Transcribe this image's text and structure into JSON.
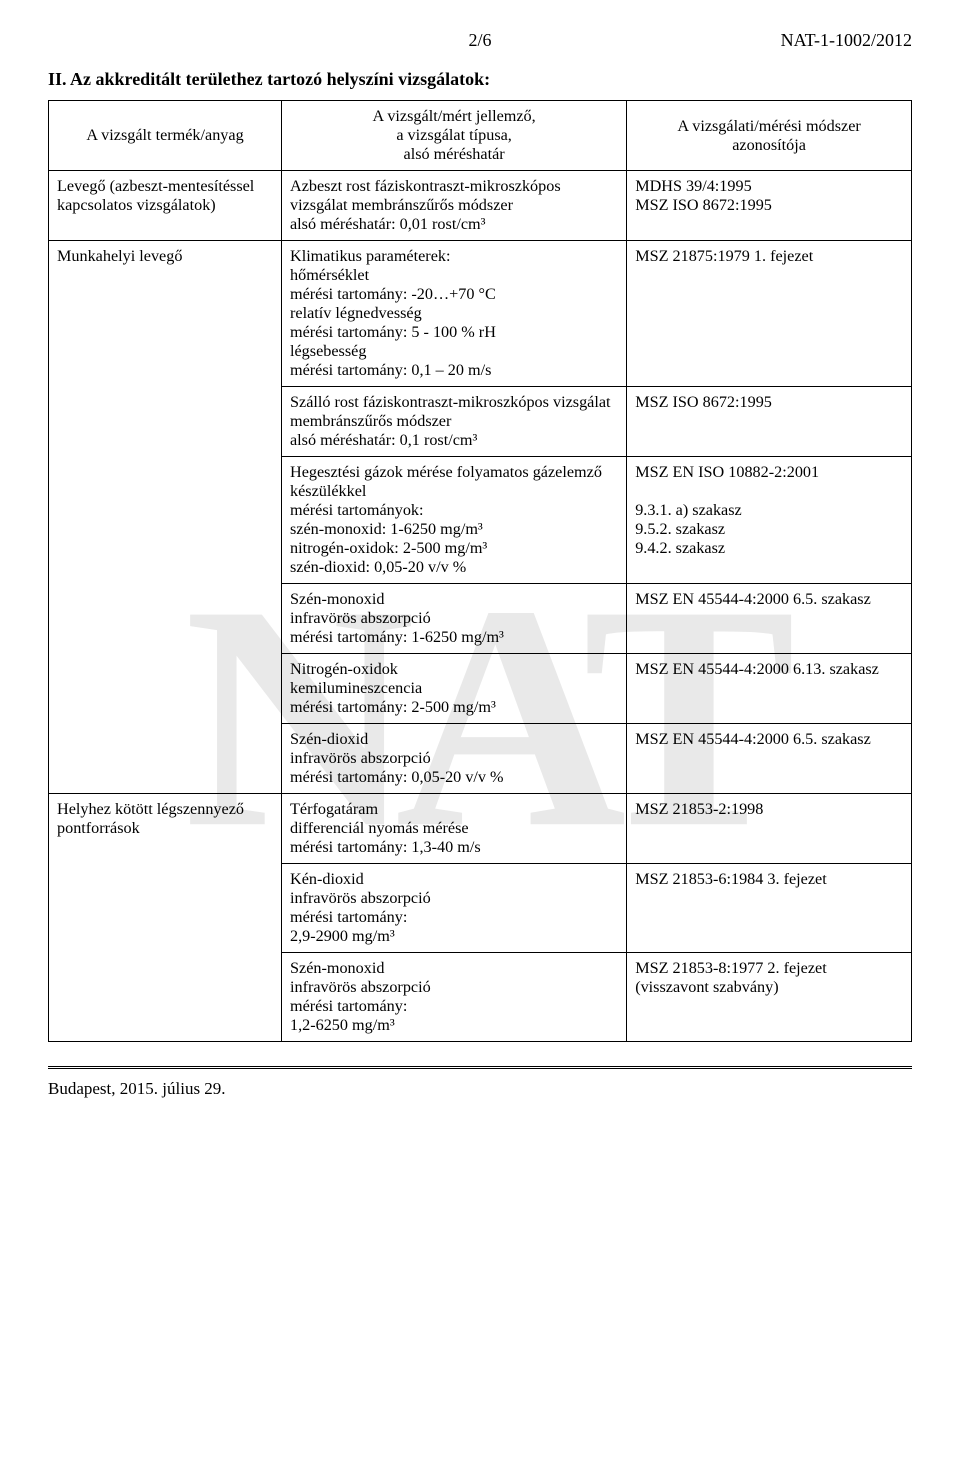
{
  "header": {
    "page_number": "2/6",
    "doc_code": "NAT-1-1002/2012"
  },
  "section_title": "II. Az akkreditált területhez tartozó helyszíni vizsgálatok:",
  "table": {
    "col_widths_pct": [
      27,
      40,
      33
    ],
    "header_cells": [
      "A vizsgált termék/anyag",
      "A vizsgált/mért jellemző,\na vizsgálat típusa,\nalsó méréshatár",
      "A vizsgálati/mérési módszer\nazonosítója"
    ],
    "rows": [
      {
        "c1": "Levegő (azbeszt-mentesítéssel kapcsolatos vizsgálatok)",
        "c2": "Azbeszt rost fáziskontraszt-mikroszkópos vizsgálat membránszűrős módszer\nalsó méréshatár: 0,01 rost/cm³",
        "c3": "MDHS 39/4:1995\nMSZ ISO 8672:1995"
      },
      {
        "c1": "Munkahelyi levegő",
        "c1_rowspan": 6,
        "c2": "Klimatikus paraméterek:\nhőmérséklet\nmérési tartomány: -20…+70 °C\nrelatív légnedvesség\nmérési tartomány: 5 - 100 % rH\nlégsebesség\nmérési tartomány: 0,1 – 20 m/s",
        "c3": "MSZ 21875:1979 1. fejezet"
      },
      {
        "c2": "Szálló rost fáziskontraszt-mikroszkópos vizsgálat membránszűrős módszer\nalsó méréshatár: 0,1 rost/cm³",
        "c3": "MSZ ISO 8672:1995"
      },
      {
        "c2": "Hegesztési gázok mérése folyamatos gázelemző készülékkel\nmérési tartományok:\nszén-monoxid: 1-6250 mg/m³\nnitrogén-oxidok: 2-500 mg/m³\nszén-dioxid: 0,05-20 v/v %",
        "c3": "MSZ EN ISO 10882-2:2001\n\n9.3.1. a) szakasz\n9.5.2. szakasz\n9.4.2. szakasz"
      },
      {
        "c2": "Szén-monoxid\ninfravörös abszorpció\nmérési tartomány: 1-6250 mg/m³",
        "c3": "MSZ EN 45544-4:2000 6.5. szakasz"
      },
      {
        "c2": "Nitrogén-oxidok\nkemilumineszcencia\nmérési tartomány: 2-500 mg/m³",
        "c3": "MSZ EN 45544-4:2000 6.13. szakasz"
      },
      {
        "c2": "Szén-dioxid\ninfravörös abszorpció\nmérési tartomány: 0,05-20 v/v %",
        "c3": "MSZ EN 45544-4:2000 6.5. szakasz"
      },
      {
        "c1": "Helyhez kötött légszennyező pontforrások",
        "c1_rowspan": 3,
        "c2": "Térfogatáram\ndifferenciál nyomás mérése\nmérési tartomány: 1,3-40 m/s",
        "c3": "MSZ 21853-2:1998"
      },
      {
        "c2": "Kén-dioxid\ninfravörös abszorpció\nmérési tartomány:\n2,9-2900 mg/m³",
        "c3": "MSZ 21853-6:1984 3. fejezet"
      },
      {
        "c2": "Szén-monoxid\ninfravörös abszorpció\nmérési tartomány:\n1,2-6250 mg/m³",
        "c3": "MSZ 21853-8:1977 2. fejezet\n(visszavont szabvány)"
      }
    ]
  },
  "footer": "Budapest, 2015. július 29.",
  "colors": {
    "text": "#000000",
    "background": "#ffffff",
    "border": "#000000",
    "watermark": "#e9e9e9"
  }
}
